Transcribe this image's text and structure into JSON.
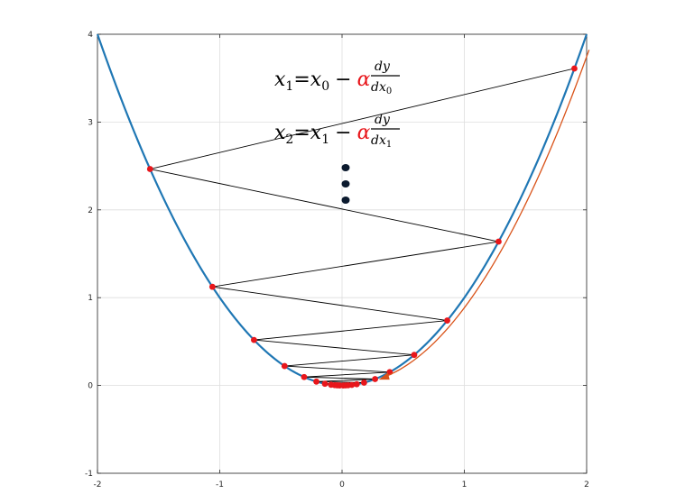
{
  "chart_data": {
    "type": "line",
    "function": "y = x^2",
    "x_range": [
      -2,
      2
    ],
    "y_range": [
      -1,
      4
    ],
    "grid": true,
    "x_ticks": [
      "-2",
      "-1",
      "0",
      "1",
      "2"
    ],
    "y_ticks": [
      "-1",
      "0",
      "1",
      "2",
      "3",
      "4"
    ],
    "x_tick_values": [
      -2,
      -1,
      0,
      1,
      2
    ],
    "y_tick_values": [
      -1,
      0,
      1,
      2,
      3,
      4
    ],
    "curve": {
      "samples": 161
    },
    "iterates_x": [
      1.9,
      -1.57,
      1.28,
      -1.06,
      0.86,
      -0.72,
      0.59,
      -0.47,
      0.39,
      -0.31,
      0.27,
      -0.21,
      0.18,
      -0.14,
      0.12,
      -0.09,
      0.08,
      -0.06,
      0.05,
      -0.04,
      0.03,
      -0.02,
      0.01
    ],
    "descent_arrow": {
      "start_x": 1.95,
      "end_x": 0.26,
      "offset": 0.07
    }
  },
  "equations": {
    "eq1": {
      "lhs": "x",
      "lhs_sub": "1",
      "rhs": "x",
      "rhs_sub": "0",
      "minus": "−",
      "alpha": "α",
      "num": "dy",
      "den": "dx",
      "den_sub": "0"
    },
    "eq2": {
      "lhs": "x",
      "lhs_sub": "2",
      "rhs": "x",
      "rhs_sub": "1",
      "minus": "−",
      "alpha": "α",
      "num": "dy",
      "den": "dx",
      "den_sub": "1"
    },
    "ellipsis_dots": 3
  },
  "colors": {
    "curve": "#1f77b4",
    "zigzag": "#000000",
    "points": "#e8161b",
    "arrow": "#d95319",
    "alpha": "#e8161b",
    "dots": "#0b1a2e",
    "grid": "#dddddd",
    "axes": "#262626"
  }
}
